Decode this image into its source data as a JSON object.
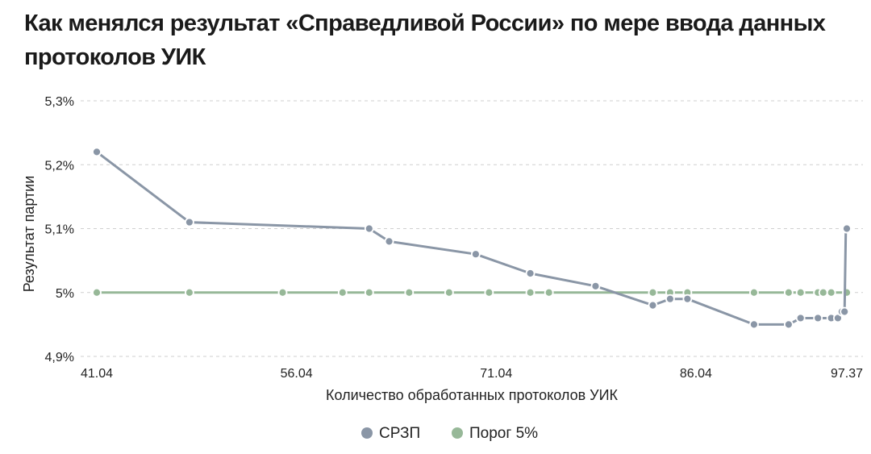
{
  "chart_data": {
    "type": "line",
    "title": "Как менялся результат «Справедливой России» по мере ввода данных протоколов УИК",
    "xlabel": "Количество обработанных протоколов УИК",
    "ylabel": "Результат партии",
    "xlim": [
      41.04,
      97.37
    ],
    "ylim": [
      4.9,
      5.3
    ],
    "x_ticks": [
      {
        "value": 41.04,
        "label": "41.04"
      },
      {
        "value": 56.04,
        "label": "56.04"
      },
      {
        "value": 71.04,
        "label": "71.04"
      },
      {
        "value": 86.04,
        "label": "86.04"
      },
      {
        "value": 97.37,
        "label": "97.37"
      }
    ],
    "y_ticks": [
      {
        "value": 5.3,
        "label": "5,3%"
      },
      {
        "value": 5.2,
        "label": "5,2%"
      },
      {
        "value": 5.1,
        "label": "5,1%"
      },
      {
        "value": 5.0,
        "label": "5%"
      },
      {
        "value": 4.9,
        "label": "4,9%"
      }
    ],
    "grid": true,
    "legend_position": "bottom-center",
    "series": [
      {
        "name": "СРЗП",
        "color": "#8a96a6",
        "x": [
          41.04,
          48.0,
          61.5,
          63.0,
          69.5,
          73.6,
          78.5,
          82.8,
          84.1,
          85.4,
          90.4,
          93.0,
          93.9,
          95.2,
          96.2,
          96.7,
          97.0,
          97.2,
          97.3,
          97.37
        ],
        "y": [
          5.22,
          5.11,
          5.1,
          5.08,
          5.06,
          5.03,
          5.01,
          4.98,
          4.99,
          4.99,
          4.95,
          4.95,
          4.96,
          4.96,
          4.96,
          4.96,
          4.97,
          4.97,
          5.1,
          5.1
        ],
        "markers_x": [
          41.04,
          48.0,
          55.0,
          59.5,
          61.5,
          64.5,
          67.5,
          70.5,
          73.6,
          75.0,
          82.8,
          84.1,
          85.4,
          90.4,
          93.0,
          93.9,
          95.2,
          95.6,
          96.2,
          97.37
        ]
      },
      {
        "name": "Порог 5%",
        "color": "#97b898",
        "x": [
          41.04,
          97.37
        ],
        "y": [
          5.0,
          5.0
        ]
      }
    ]
  }
}
